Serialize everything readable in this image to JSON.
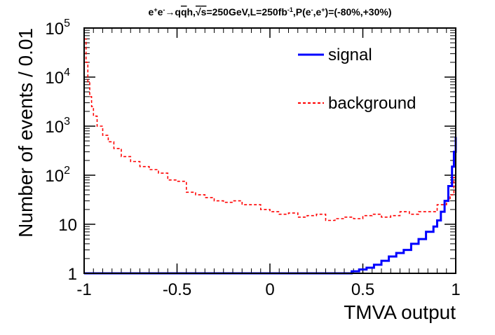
{
  "chart_data": {
    "type": "line",
    "title": {
      "t1": "e",
      "t1sup": "+",
      "t2": "e",
      "t2sup": "-",
      "t3": "→q",
      "t4": "q",
      "t5": "h,",
      "t6": "√",
      "t7": "s",
      "t8": "=250GeV,L=250fb",
      "t8sup": "-1",
      "t9": ",P(e",
      "t9sup": "-",
      "t10": ",e",
      "t10sup": "+",
      "t11": ")=(-80%,+30%)"
    },
    "xlabel": "TMVA output",
    "ylabel": "Number of events / 0.01",
    "xlim": [
      -1,
      1
    ],
    "ylim": [
      1,
      100000
    ],
    "yscale": "log",
    "x_ticks": [
      {
        "v": -1,
        "label": "-1"
      },
      {
        "v": -0.5,
        "label": "-0.5"
      },
      {
        "v": 0,
        "label": "0"
      },
      {
        "v": 0.5,
        "label": "0.5"
      },
      {
        "v": 1,
        "label": "1"
      }
    ],
    "y_ticks": [
      {
        "v": 1,
        "label": "1"
      },
      {
        "v": 10,
        "label": "10"
      },
      {
        "v": 100,
        "base": "10",
        "exp": "2"
      },
      {
        "v": 1000,
        "base": "10",
        "exp": "3"
      },
      {
        "v": 10000,
        "base": "10",
        "exp": "4"
      },
      {
        "v": 100000,
        "base": "10",
        "exp": "5"
      }
    ],
    "legend": {
      "placement": "top-right",
      "entries": [
        {
          "label": "signal",
          "color": "#0000ff",
          "style": "solid"
        },
        {
          "label": "background",
          "color": "#ff0000",
          "style": "dashed"
        }
      ]
    },
    "series": [
      {
        "name": "background",
        "color": "#ff0000",
        "style": "dashed",
        "x": [
          -1.0,
          -0.99,
          -0.98,
          -0.97,
          -0.96,
          -0.95,
          -0.93,
          -0.9,
          -0.87,
          -0.84,
          -0.8,
          -0.75,
          -0.7,
          -0.65,
          -0.6,
          -0.55,
          -0.5,
          -0.45,
          -0.4,
          -0.35,
          -0.3,
          -0.25,
          -0.2,
          -0.15,
          -0.1,
          -0.05,
          0.0,
          0.05,
          0.1,
          0.15,
          0.2,
          0.25,
          0.3,
          0.35,
          0.4,
          0.45,
          0.5,
          0.55,
          0.6,
          0.65,
          0.7,
          0.75,
          0.8,
          0.85,
          0.9,
          0.95,
          0.97,
          0.99,
          1.0
        ],
        "values": [
          60000,
          20000,
          8000,
          4000,
          2500,
          1600,
          1000,
          650,
          480,
          350,
          240,
          190,
          150,
          130,
          110,
          80,
          75,
          45,
          40,
          35,
          30,
          28,
          30,
          25,
          25,
          20,
          18,
          16,
          17,
          14,
          15,
          16,
          12,
          13,
          14,
          13,
          15,
          16,
          14,
          15,
          18,
          16,
          18,
          18,
          25,
          30,
          40,
          90,
          100
        ]
      },
      {
        "name": "signal",
        "color": "#0000ff",
        "style": "solid",
        "x": [
          -1.0,
          0.4,
          0.44,
          0.48,
          0.52,
          0.56,
          0.6,
          0.64,
          0.68,
          0.72,
          0.76,
          0.8,
          0.84,
          0.88,
          0.9,
          0.92,
          0.94,
          0.96,
          0.98,
          0.99,
          1.0
        ],
        "values": [
          1,
          1,
          1.1,
          1.2,
          1.3,
          1.5,
          1.8,
          2.2,
          2.6,
          3,
          4,
          5,
          7,
          9,
          12,
          18,
          30,
          60,
          150,
          300,
          600
        ]
      }
    ]
  }
}
